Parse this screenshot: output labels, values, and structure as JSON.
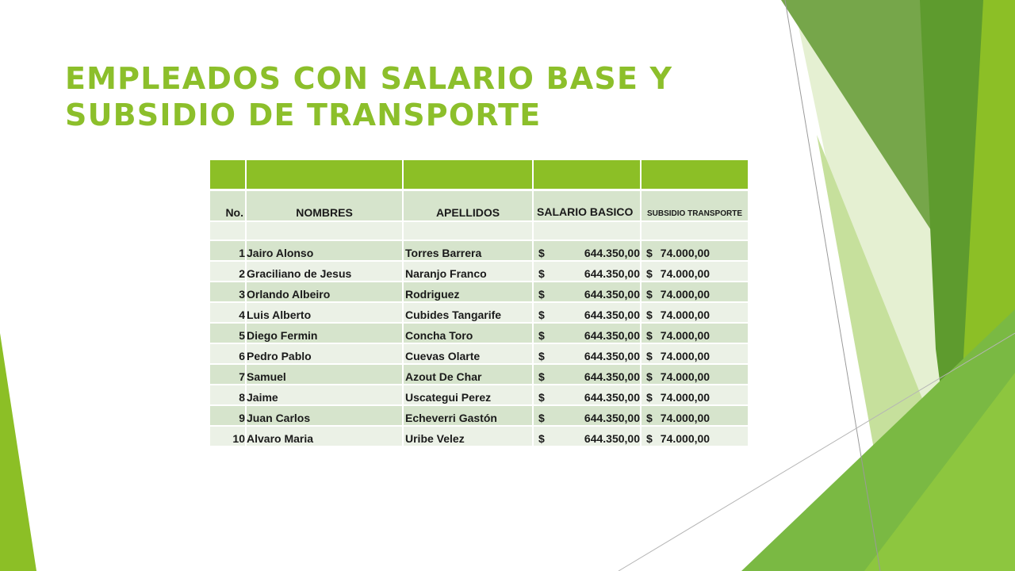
{
  "title": {
    "line1": "EMPLEADOS CON SALARIO BASE Y",
    "line2": "SUBSIDIO DE TRANSPORTE"
  },
  "table": {
    "headers": {
      "no": "No.",
      "nombres": "NOMBRES",
      "apellidos": "APELLIDOS",
      "salario": "SALARIO BASICO",
      "subsidio": "SUBSIDIO TRANSPORTE"
    },
    "currency": "$",
    "rows": [
      {
        "no": "1",
        "nombres": "Jairo Alonso",
        "apellidos": "Torres Barrera",
        "salario": "644.350,00",
        "subsidio": "74.000,00"
      },
      {
        "no": "2",
        "nombres": "Graciliano  de Jesus",
        "apellidos": "Naranjo Franco",
        "salario": "644.350,00",
        "subsidio": "74.000,00"
      },
      {
        "no": "3",
        "nombres": "Orlando Albeiro",
        "apellidos": "Rodriguez",
        "salario": "644.350,00",
        "subsidio": "74.000,00"
      },
      {
        "no": "4",
        "nombres": "Luis Alberto",
        "apellidos": "Cubides Tangarife",
        "salario": "644.350,00",
        "subsidio": "74.000,00"
      },
      {
        "no": "5",
        "nombres": "Diego Fermin",
        "apellidos": "Concha Toro",
        "salario": "644.350,00",
        "subsidio": "74.000,00"
      },
      {
        "no": "6",
        "nombres": "Pedro Pablo",
        "apellidos": "Cuevas Olarte",
        "salario": "644.350,00",
        "subsidio": "74.000,00"
      },
      {
        "no": "7",
        "nombres": "Samuel",
        "apellidos": "Azout De Char",
        "salario": "644.350,00",
        "subsidio": "74.000,00"
      },
      {
        "no": "8",
        "nombres": "Jaime",
        "apellidos": "Uscategui Perez",
        "salario": "644.350,00",
        "subsidio": "74.000,00"
      },
      {
        "no": "9",
        "nombres": "Juan Carlos",
        "apellidos": "Echeverri Gastón",
        "salario": "644.350,00",
        "subsidio": "74.000,00"
      },
      {
        "no": "10",
        "nombres": "Alvaro Maria",
        "apellidos": "Uribe Velez",
        "salario": "644.350,00",
        "subsidio": "74.000,00"
      }
    ]
  },
  "colors": {
    "title": "#8cbf2b",
    "header_band": "#8cbf26",
    "row_light": "#ebf1e6",
    "row_dark": "#d6e4cc"
  }
}
